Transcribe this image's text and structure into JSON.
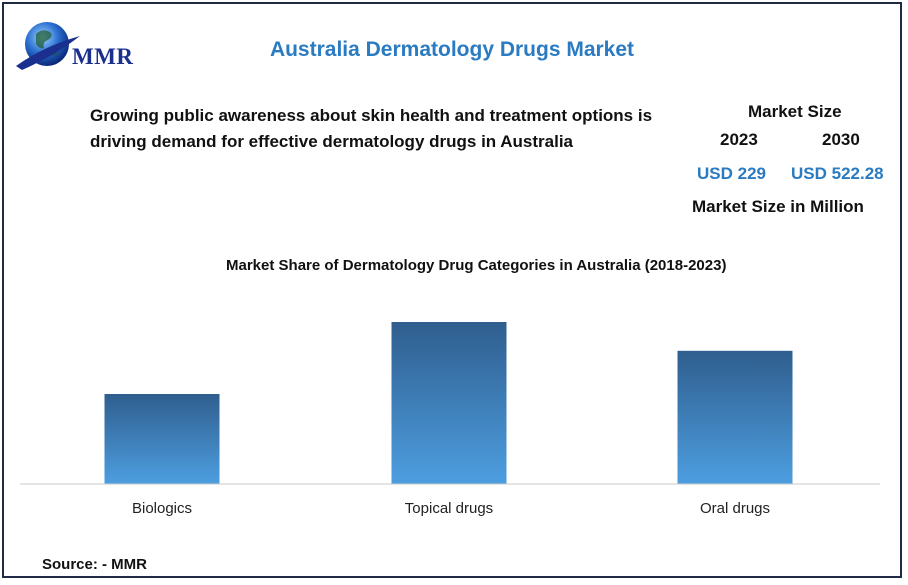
{
  "header": {
    "logo_text": "MMR",
    "title": "Australia Dermatology Drugs Market"
  },
  "summary": {
    "headline": "Growing public awareness about skin health and treatment options is driving demand for effective dermatology drugs in Australia",
    "market_size_label": "Market Size",
    "year_start": "2023",
    "year_end": "2030",
    "value_start": "USD 229",
    "value_end": "USD 522.28",
    "unit_label": "Market Size in Million"
  },
  "chart_data": {
    "type": "bar",
    "title": "Market Share of Dermatology Drug Categories in Australia (2018-2023)",
    "categories": [
      "Biologics",
      "Topical drugs",
      "Oral drugs"
    ],
    "values": [
      25,
      45,
      37
    ],
    "ylim": [
      0,
      50
    ],
    "xlabel": "",
    "ylabel": "",
    "grid": false,
    "colors": {
      "bar_top": "#2f5e8e",
      "bar_bottom": "#4d9ee0",
      "axis": "#c8c8c8"
    }
  },
  "footer": {
    "source": "Source: - MMR"
  }
}
